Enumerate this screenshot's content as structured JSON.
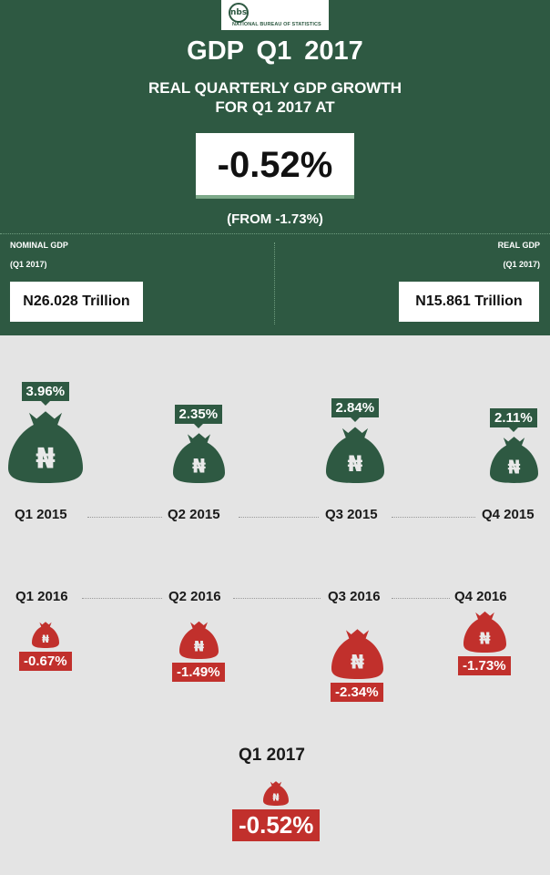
{
  "header": {
    "logo_mark": "nbs",
    "logo_text": "NATIONAL BUREAU OF STATISTICS",
    "title": "GDP  Q1 2017",
    "subtitle_line1": "REAL QUARTERLY GDP GROWTH",
    "subtitle_line2": "FOR Q1  2017 AT",
    "headline_value": "-0.52%",
    "from_text": "(FROM -1.73%)",
    "nominal_label": "NOMINAL GDP",
    "nominal_period": "(Q1 2017)",
    "nominal_value": "N26.028 Trillion",
    "real_label": "REAL GDP",
    "real_period": "(Q1 2017)",
    "real_value": "N15.861  Trillion"
  },
  "colors": {
    "positive": "#2e5942",
    "negative": "#c1302c",
    "background": "#e4e4e4"
  },
  "icons": {
    "bag": "money-bag-icon",
    "currency": "naira-sign"
  },
  "chart_data": {
    "type": "bar",
    "title": "",
    "categories": [
      "Q1 2015",
      "Q2 2015",
      "Q3 2015",
      "Q4 2015",
      "Q1 2016",
      "Q2 2016",
      "Q3 2016",
      "Q4 2016",
      "Q1 2017"
    ],
    "series": [
      {
        "name": "",
        "values": [
          3.96,
          2.35,
          2.84,
          2.11,
          -0.67,
          -1.49,
          -2.34,
          -1.73,
          -0.52
        ]
      }
    ],
    "value_labels": [
      "3.96%",
      "2.35%",
      "2.84%",
      "2.11%",
      "-0.67%",
      "-1.49%",
      "-2.34%",
      "-1.73%",
      "-0.52%"
    ],
    "bag_symbol": "₦"
  }
}
